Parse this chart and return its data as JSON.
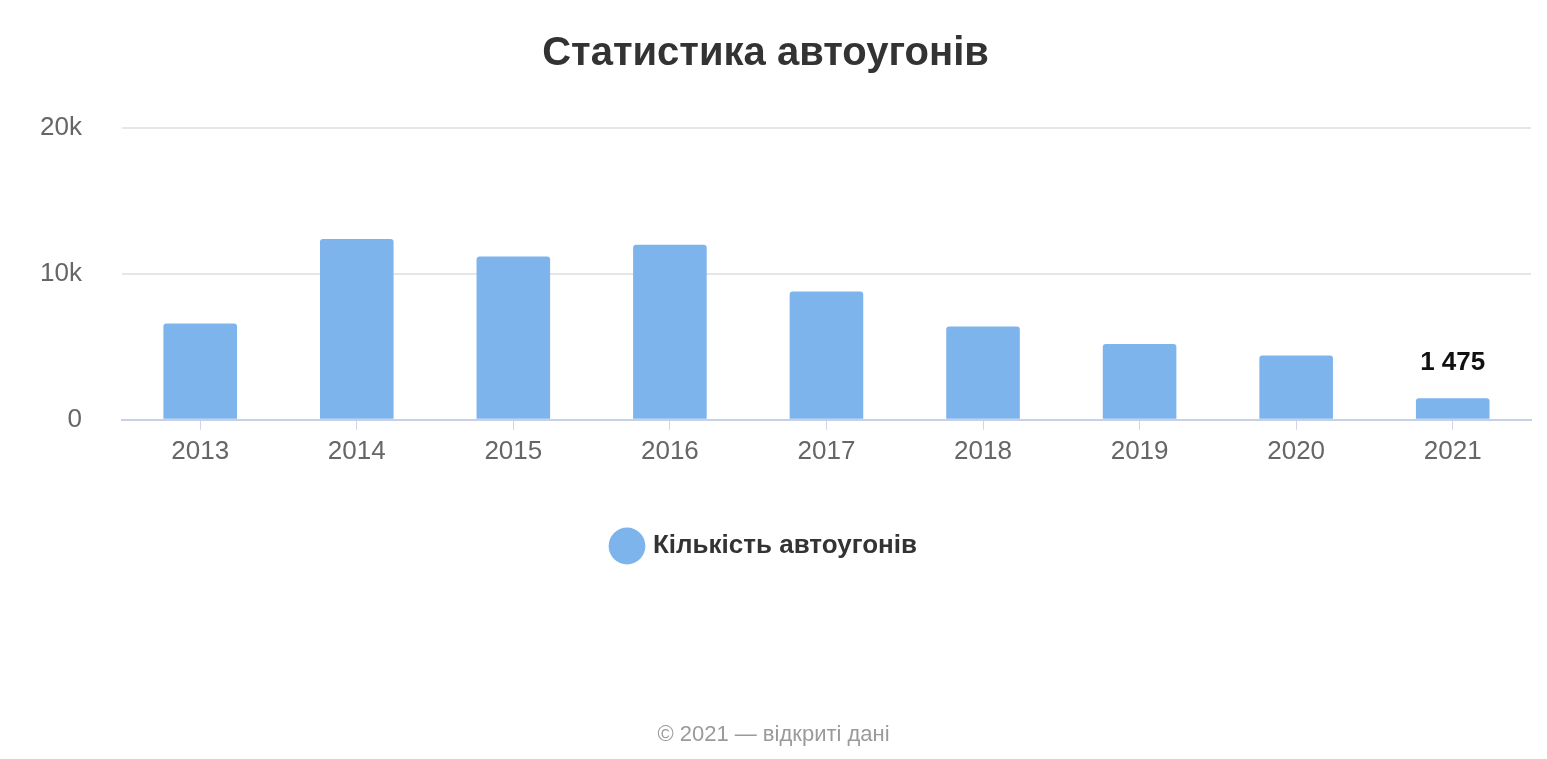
{
  "chart_data": {
    "type": "bar",
    "title": "Статистика автоугонів",
    "categories": [
      "2013",
      "2014",
      "2015",
      "2016",
      "2017",
      "2018",
      "2019",
      "2020",
      "2021"
    ],
    "series": [
      {
        "name": "Кількість автоугонів",
        "color": "#7db4ec",
        "values": [
          6600,
          12400,
          11200,
          12000,
          8800,
          6400,
          5200,
          4400,
          1475
        ],
        "value_labels": [
          null,
          null,
          null,
          null,
          null,
          null,
          null,
          null,
          "1 475"
        ]
      }
    ],
    "ylim": [
      0,
      20000
    ],
    "yticks": [
      {
        "value": 0,
        "label": "0"
      },
      {
        "value": 10000,
        "label": "10k"
      },
      {
        "value": 20000,
        "label": "20k"
      }
    ],
    "grid": "y",
    "legend": "bottom",
    "annotations": [
      "© 2021 — відкриті дані"
    ]
  }
}
